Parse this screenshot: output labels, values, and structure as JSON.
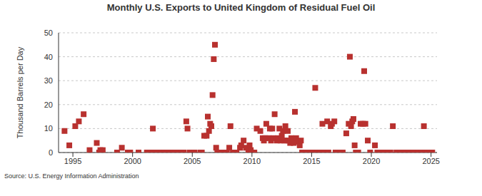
{
  "chart_data": {
    "type": "scatter",
    "title": "Monthly U.S. Exports to United Kingdom of Residual Fuel Oil",
    "y_label": "Thousand Barrels per Day",
    "source": "Source: U.S. Energy Information Administration",
    "color": "#b8312f",
    "marker": "square",
    "grid": true,
    "xlim": [
      1993.8,
      2025.5
    ],
    "xticks": [
      1995,
      2000,
      2005,
      2010,
      2015,
      2020,
      2025
    ],
    "ylim": [
      0,
      50
    ],
    "yticks": [
      0,
      10,
      20,
      30,
      40,
      50
    ],
    "x": [
      1994.3,
      1994.7,
      1995.2,
      1995.5,
      1995.9,
      1996.4,
      1997.0,
      1997.2,
      1997.3,
      1997.5,
      1998.7,
      1999.1,
      1999.6,
      1999.8,
      2000.5,
      2001.2,
      2001.5,
      2001.7,
      2001.9,
      2002.2,
      2002.4,
      2002.7,
      2002.9,
      2003.1,
      2003.4,
      2003.6,
      2003.9,
      2004.1,
      2004.3,
      2004.5,
      2004.6,
      2004.8,
      2005.2,
      2005.7,
      2005.8,
      2006.0,
      2006.2,
      2006.3,
      2006.4,
      2006.5,
      2006.6,
      2006.7,
      2006.8,
      2006.9,
      2007.0,
      2007.1,
      2007.3,
      2007.5,
      2007.8,
      2007.9,
      2008.1,
      2008.2,
      2008.4,
      2008.7,
      2009.0,
      2009.1,
      2009.3,
      2009.5,
      2009.7,
      2009.8,
      2009.9,
      2010.0,
      2010.2,
      2010.4,
      2010.7,
      2010.9,
      2011.0,
      2011.1,
      2011.2,
      2011.4,
      2011.5,
      2011.6,
      2011.7,
      2011.8,
      2011.9,
      2012.1,
      2012.2,
      2012.3,
      2012.4,
      2012.5,
      2012.6,
      2012.7,
      2012.8,
      2012.9,
      2013.0,
      2013.1,
      2013.2,
      2013.3,
      2013.4,
      2013.5,
      2013.6,
      2013.7,
      2013.9,
      2014.0,
      2014.1,
      2014.2,
      2014.4,
      2014.6,
      2014.9,
      2015.1,
      2015.3,
      2015.5,
      2015.7,
      2015.9,
      2016.1,
      2016.3,
      2016.4,
      2016.6,
      2016.7,
      2016.9,
      2017.0,
      2017.2,
      2017.4,
      2017.6,
      2017.9,
      2018.1,
      2018.2,
      2018.3,
      2018.4,
      2018.5,
      2018.6,
      2018.7,
      2018.8,
      2018.9,
      2019.1,
      2019.3,
      2019.4,
      2019.5,
      2019.7,
      2019.9,
      2020.3,
      2020.5,
      2020.7,
      2020.9,
      2021.2,
      2021.4,
      2021.6,
      2021.8,
      2022.1,
      2022.4,
      2022.8,
      2023.1,
      2023.5,
      2023.9,
      2024.2,
      2024.4,
      2024.5,
      2024.7,
      2024.9,
      2025.1
    ],
    "values": [
      9,
      3,
      11,
      13,
      16,
      1,
      4,
      0,
      1,
      1,
      0,
      2,
      0,
      0,
      0,
      0,
      0,
      10,
      0,
      0,
      0,
      0,
      0,
      0,
      0,
      0,
      0,
      0,
      0,
      13,
      10,
      0,
      0,
      0,
      0,
      7,
      7,
      15,
      9,
      12,
      11,
      24,
      39,
      45,
      2,
      0,
      0,
      0,
      0,
      0,
      2,
      11,
      0,
      0,
      2,
      3,
      5,
      2,
      0,
      3,
      1,
      0,
      0,
      10,
      9,
      6,
      5,
      6,
      12,
      6,
      10,
      5,
      10,
      6,
      16,
      5,
      6,
      10,
      5,
      7,
      9,
      5,
      11,
      5,
      9,
      5,
      4,
      6,
      5,
      4,
      17,
      6,
      4.5,
      3,
      5,
      0,
      0,
      0,
      0,
      0,
      27,
      0,
      0,
      12,
      0,
      13,
      0,
      11,
      12,
      13,
      0,
      0,
      0,
      0,
      8,
      12,
      40,
      11,
      13,
      14,
      3,
      0,
      0,
      0,
      12,
      12,
      34,
      12,
      5,
      0,
      3,
      0,
      0,
      0,
      0,
      0,
      0,
      11,
      0,
      0,
      0,
      0,
      0,
      0,
      0,
      11,
      0,
      0,
      0,
      0
    ]
  }
}
